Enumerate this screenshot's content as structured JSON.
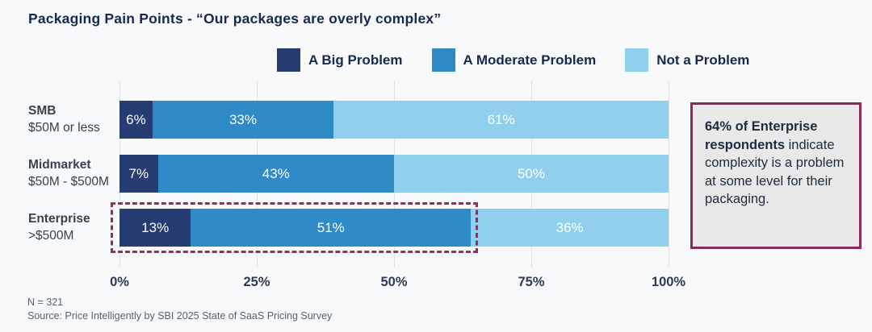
{
  "page": {
    "title": "Packaging Pain Points - “Our packages are overly complex”",
    "background": "#F8F9FA"
  },
  "legend": {
    "items": [
      {
        "label": "A Big Problem",
        "color": "#263C72"
      },
      {
        "label": "A Moderate Problem",
        "color": "#2E8BC8"
      },
      {
        "label": "Not a Problem",
        "color": "#90D0EE"
      }
    ]
  },
  "chart_data": {
    "type": "bar",
    "stacked": true,
    "orientation": "horizontal",
    "title": "Packaging Pain Points - “Our packages are overly complex”",
    "series_names": [
      "A Big Problem",
      "A Moderate Problem",
      "Not a Problem"
    ],
    "series_colors": [
      "#263C72",
      "#2E8BC8",
      "#90D0EE"
    ],
    "categories": [
      "SMB $50M or less",
      "Midmarket $50M - $500M",
      "Enterprise >$500M"
    ],
    "rows": [
      {
        "label_line1": "SMB",
        "label_line2": "$50M or less",
        "values": [
          6,
          33,
          61
        ]
      },
      {
        "label_line1": "Midmarket",
        "label_line2": "$50M - $500M",
        "values": [
          7,
          43,
          50
        ]
      },
      {
        "label_line1": "Enterprise",
        "label_line2": ">$500M",
        "values": [
          13,
          51,
          36
        ]
      }
    ],
    "value_suffix": "%",
    "x_ticks": [
      "0%",
      "25%",
      "50%",
      "75%",
      "100%"
    ],
    "xlim": [
      0,
      100
    ],
    "grid": true,
    "legend_position": "top",
    "annotations": {
      "highlight_box": {
        "row": "Enterprise",
        "covers_values": [
          13,
          51
        ],
        "total_label": "64%",
        "style": "dashed",
        "color": "#9C2B5A"
      }
    }
  },
  "callout": {
    "bold_text": "64% of Enterprise respondents",
    "text": "indicate complexity is a problem at some level for their packaging.",
    "border_color": "#8E2A5B",
    "background": "#E9E9E9"
  },
  "footer": {
    "n_label": "N = 321",
    "source": "Source: Price Intelligently by SBI 2025 State of SaaS Pricing Survey"
  }
}
